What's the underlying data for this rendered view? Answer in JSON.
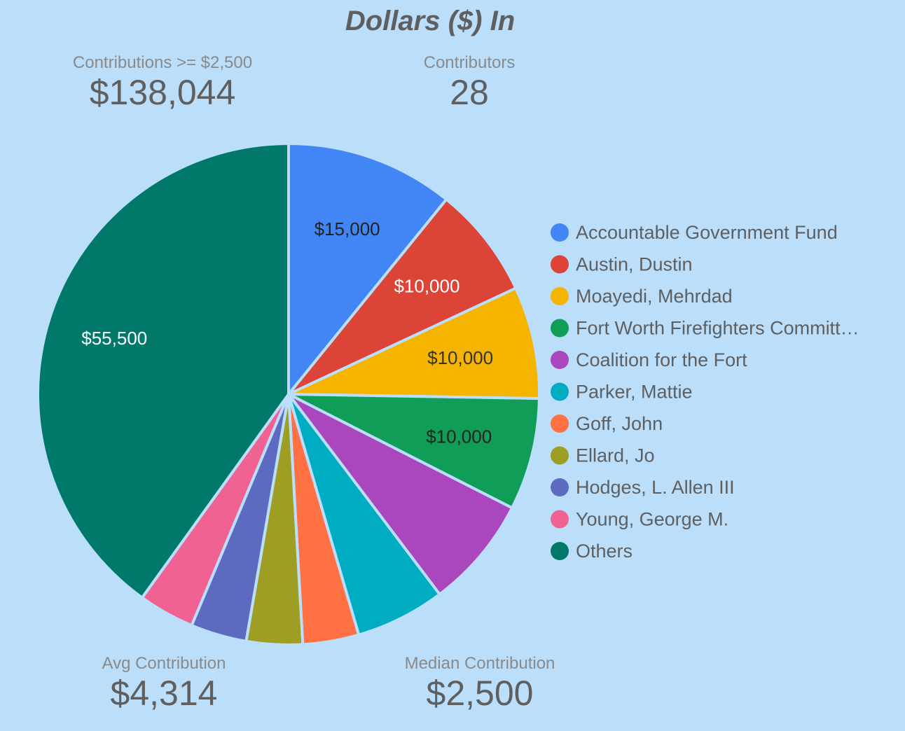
{
  "title": "Dollars ($) In",
  "kpis": {
    "contributions_over": {
      "label": "Contributions >= $2,500",
      "value": "$138,044"
    },
    "contributors": {
      "label": "Contributors",
      "value": "28"
    },
    "avg": {
      "label": "Avg Contribution",
      "value": "$4,314"
    },
    "median": {
      "label": "Median Contribution",
      "value": "$2,500"
    }
  },
  "chart_data": {
    "type": "pie",
    "title": "Dollars ($) In",
    "legend_position": "right",
    "slices": [
      {
        "name": "Accountable Government Fund",
        "legend_label": "Accountable Government Fund",
        "value": 15000,
        "label": "$15,000",
        "color": "#4285f4",
        "label_color": "#222222"
      },
      {
        "name": "Austin, Dustin",
        "legend_label": "Austin, Dustin",
        "value": 10000,
        "label": "$10,000",
        "color": "#db4437",
        "label_color": "#ffffff"
      },
      {
        "name": "Moayedi, Mehrdad",
        "legend_label": "Moayedi, Mehrdad",
        "value": 10000,
        "label": "$10,000",
        "color": "#f4b400",
        "label_color": "#333333"
      },
      {
        "name": "Fort Worth Firefighters Committ…",
        "legend_label": "Fort Worth Firefighters Committ…",
        "value": 10000,
        "label": "$10,000",
        "color": "#0f9d58",
        "label_color": "#222222"
      },
      {
        "name": "Coalition for the Fort",
        "legend_label": "Coalition for the Fort",
        "value": 10000,
        "label": "",
        "color": "#ab47bc",
        "label_color": "#ffffff"
      },
      {
        "name": "Parker, Mattie",
        "legend_label": "Parker, Mattie",
        "value": 8000,
        "label": "",
        "color": "#00acc1",
        "label_color": "#ffffff"
      },
      {
        "name": "Goff, John",
        "legend_label": "Goff, John",
        "value": 5000,
        "label": "",
        "color": "#ff7043",
        "label_color": "#ffffff"
      },
      {
        "name": "Ellard, Jo",
        "legend_label": "Ellard, Jo",
        "value": 5000,
        "label": "",
        "color": "#9e9d24",
        "label_color": "#ffffff"
      },
      {
        "name": "Hodges, L. Allen III",
        "legend_label": "Hodges, L. Allen III",
        "value": 5000,
        "label": "",
        "color": "#5c6bc0",
        "label_color": "#ffffff"
      },
      {
        "name": "Young, George M.",
        "legend_label": "Young, George M.",
        "value": 5000,
        "label": "",
        "color": "#f06292",
        "label_color": "#ffffff"
      },
      {
        "name": "Others",
        "legend_label": "Others",
        "value": 55500,
        "label": "$55,500",
        "color": "#00796b",
        "label_color": "#ffffff"
      }
    ]
  }
}
